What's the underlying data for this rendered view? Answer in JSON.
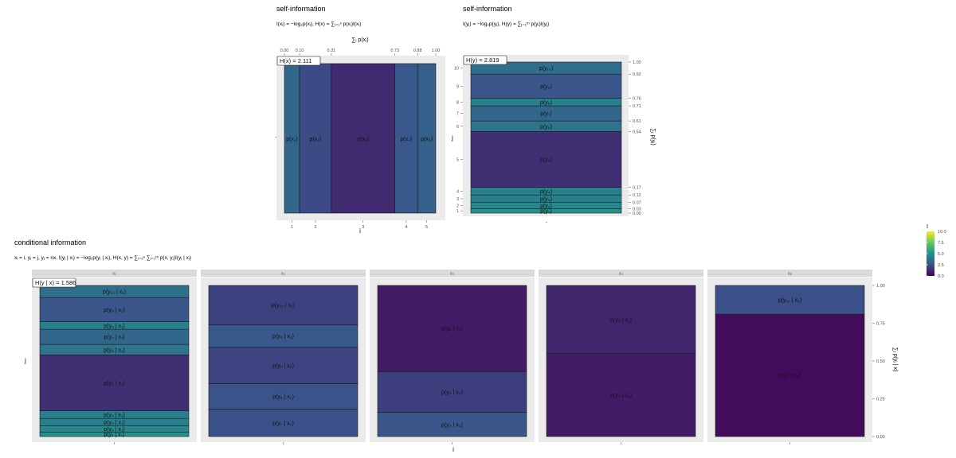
{
  "colors": {
    "panel_bg": "#ebebeb",
    "strip_bg": "#d9d9d9",
    "border": "#1a1a1a",
    "text": "#111111",
    "axis_text": "#4d4d4d"
  },
  "legend": {
    "title": "I",
    "ticks": [
      "10.0",
      "7.5",
      "5.0",
      "2.5",
      "0.0"
    ],
    "values": [
      10,
      7.5,
      5,
      2.5,
      0
    ],
    "colormap": "viridis"
  },
  "chart_data": [
    {
      "type": "mosaic",
      "title": "self-information",
      "formula": "I(xᵢ) = −log₂p(xᵢ), H(x) = ∑ᵢ₌₁ⁿ p(xᵢ)I(xᵢ)",
      "top_axis_label": "∑ᵢ p(xᵢ)",
      "top_ticks": [
        "0.00",
        "0.10",
        "0.31",
        "0.73",
        "0.88",
        "1.00"
      ],
      "cum": [
        0,
        0.1,
        0.31,
        0.73,
        0.88,
        1.0
      ],
      "xlabel": "i",
      "x_ticks": [
        "1",
        "2",
        "3",
        "4",
        "5"
      ],
      "ylabel": "·",
      "entropy_label": "H(x) = 2.111",
      "segments": [
        {
          "label": "p(x₁)",
          "start": 0.0,
          "end": 0.1,
          "I": 3.32
        },
        {
          "label": "p(x₂)",
          "start": 0.1,
          "end": 0.31,
          "I": 2.25
        },
        {
          "label": "p(x₃)",
          "start": 0.31,
          "end": 0.73,
          "I": 1.25
        },
        {
          "label": "p(x₄)",
          "start": 0.73,
          "end": 0.88,
          "I": 2.74
        },
        {
          "label": "p(x₅)",
          "start": 0.88,
          "end": 1.0,
          "I": 3.06
        }
      ]
    },
    {
      "type": "mosaic",
      "title": "self-information",
      "formula": "I(yⱼ) = −log₂p(yⱼ), H(y) = ∑ⱼ₌₁ᵐ p(yⱼ)I(yⱼ)",
      "ylabel": "j",
      "xlabel": "·",
      "right_axis_label": "∑ⱼ p(yⱼ)",
      "left_ticks": [
        "1",
        "2",
        "3",
        "4",
        "5",
        "6",
        "7",
        "8",
        "9",
        "10"
      ],
      "right_ticks": [
        "0.00",
        "0.03",
        "0.07",
        "0.12",
        "0.17",
        "0.54",
        "0.61",
        "0.71",
        "0.76",
        "0.92",
        "1.00"
      ],
      "cum": [
        0,
        0.03,
        0.07,
        0.12,
        0.17,
        0.54,
        0.61,
        0.71,
        0.76,
        0.92,
        1.0
      ],
      "entropy_label": "H(y) = 2.819",
      "segments": [
        {
          "label": "p(y₁)",
          "start": 0.0,
          "end": 0.03,
          "I": 5.06
        },
        {
          "label": "p(y₂)",
          "start": 0.03,
          "end": 0.07,
          "I": 4.64
        },
        {
          "label": "p(y₃)",
          "start": 0.07,
          "end": 0.12,
          "I": 4.32
        },
        {
          "label": "p(y₄)",
          "start": 0.12,
          "end": 0.17,
          "I": 4.32
        },
        {
          "label": "p(y₅)",
          "start": 0.17,
          "end": 0.54,
          "I": 1.43
        },
        {
          "label": "p(y₆)",
          "start": 0.54,
          "end": 0.61,
          "I": 3.84
        },
        {
          "label": "p(y₇)",
          "start": 0.61,
          "end": 0.71,
          "I": 3.32
        },
        {
          "label": "p(y₈)",
          "start": 0.71,
          "end": 0.76,
          "I": 4.32
        },
        {
          "label": "p(y₉)",
          "start": 0.76,
          "end": 0.92,
          "I": 2.64
        },
        {
          "label": "p(y₁₀)",
          "start": 0.92,
          "end": 1.0,
          "I": 3.64
        }
      ]
    },
    {
      "type": "faceted-mosaic",
      "title": "conditional information",
      "formula": "xᵢ = i, yⱼ = j, yⱼ = nx, I(yⱼ | xᵢ) = −log₂p(yⱼ | xᵢ), H(x, y) = ∑ᵢ₌₁ⁿ ∑ⱼ₌₁ᵐ p(x, yⱼ)I(yⱼ | xᵢ)",
      "xlabel": "i",
      "ylabel": "j",
      "right_axis_label": "∑ⱼ p(yⱼ | x)",
      "right_ticks": [
        "1.00",
        "0.75",
        "0.50",
        "0.25",
        "0.00"
      ],
      "right_values": [
        1.0,
        0.75,
        0.5,
        0.25,
        0.0
      ],
      "entropy_label": "H(y | x) = 1.586",
      "facets": [
        {
          "strip": "x₁",
          "segments": [
            {
              "label": "p(y₁ | x₁)",
              "start": 0.0,
              "end": 0.03,
              "I": 5.06
            },
            {
              "label": "p(y₂ | x₁)",
              "start": 0.03,
              "end": 0.07,
              "I": 4.64
            },
            {
              "label": "p(y₃ | x₁)",
              "start": 0.07,
              "end": 0.12,
              "I": 4.32
            },
            {
              "label": "p(y₄ | x₁)",
              "start": 0.12,
              "end": 0.17,
              "I": 4.32
            },
            {
              "label": "p(y₅ | x₁)",
              "start": 0.17,
              "end": 0.54,
              "I": 1.43
            },
            {
              "label": "p(y₆ | x₁)",
              "start": 0.54,
              "end": 0.61,
              "I": 3.84
            },
            {
              "label": "p(y₇ | x₁)",
              "start": 0.61,
              "end": 0.71,
              "I": 3.32
            },
            {
              "label": "p(y₈ | x₁)",
              "start": 0.71,
              "end": 0.76,
              "I": 4.32
            },
            {
              "label": "p(y₉ | x₁)",
              "start": 0.76,
              "end": 0.92,
              "I": 2.64
            },
            {
              "label": "p(y₁₀ | x₁)",
              "start": 0.92,
              "end": 1.0,
              "I": 3.64
            }
          ]
        },
        {
          "strip": "x₂",
          "segments": [
            {
              "label": "p(y₂ | x₂)",
              "start": 0.0,
              "end": 0.18,
              "I": 2.47
            },
            {
              "label": "p(y₄ | x₂)",
              "start": 0.18,
              "end": 0.35,
              "I": 2.56
            },
            {
              "label": "p(y₆ | x₂)",
              "start": 0.35,
              "end": 0.59,
              "I": 2.06
            },
            {
              "label": "p(y₈ | x₂)",
              "start": 0.59,
              "end": 0.74,
              "I": 2.74
            },
            {
              "label": "p(y₁₀ | x₂)",
              "start": 0.74,
              "end": 1.0,
              "I": 1.94
            }
          ]
        },
        {
          "strip": "x₃",
          "segments": [
            {
              "label": "p(y₃ | x₃)",
              "start": 0.0,
              "end": 0.16,
              "I": 2.64
            },
            {
              "label": "p(y₆ | x₃)",
              "start": 0.16,
              "end": 0.43,
              "I": 1.89
            },
            {
              "label": "p(y₉ | x₃)",
              "start": 0.43,
              "end": 1.0,
              "I": 0.81
            }
          ]
        },
        {
          "strip": "x₄",
          "segments": [
            {
              "label": "p(y₄ | x₄)",
              "start": 0.0,
              "end": 0.55,
              "I": 0.86
            },
            {
              "label": "p(y₈ | x₄)",
              "start": 0.55,
              "end": 1.0,
              "I": 1.15
            }
          ]
        },
        {
          "strip": "x₅",
          "segments": [
            {
              "label": "p(y₅ | x₅)",
              "start": 0.0,
              "end": 0.81,
              "I": 0.3
            },
            {
              "label": "p(y₁₀ | x₅)",
              "start": 0.81,
              "end": 1.0,
              "I": 2.4
            }
          ]
        }
      ]
    }
  ]
}
